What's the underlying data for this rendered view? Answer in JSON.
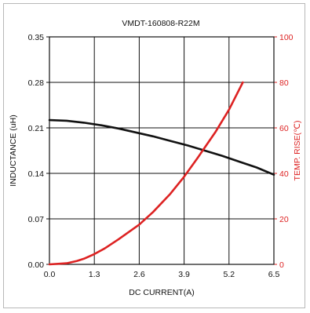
{
  "chart_data": {
    "type": "line",
    "title": "VMDT-160808-R22M",
    "xlabel": "DC CURRENT(A)",
    "ylabel_left": "INDUCTANCE (uH)",
    "ylabel_right": "TEMP. RISE(℃)",
    "xlim": [
      0,
      6.5
    ],
    "ylim_left": [
      0,
      0.35
    ],
    "ylim_right": [
      0,
      100
    ],
    "x_ticks": [
      "0.0",
      "1.3",
      "2.6",
      "3.9",
      "5.2",
      "6.5"
    ],
    "y_left_ticks": [
      "0.00",
      "0.07",
      "0.14",
      "0.21",
      "0.28",
      "0.35"
    ],
    "y_right_ticks": [
      "0",
      "20",
      "40",
      "60",
      "80",
      "100"
    ],
    "grid": true,
    "series": [
      {
        "axis": "left",
        "color": "#111111",
        "x": [
          0.0,
          0.5,
          1.0,
          1.5,
          2.0,
          2.5,
          3.0,
          3.5,
          4.0,
          4.5,
          5.0,
          5.5,
          6.0,
          6.5
        ],
        "y": [
          0.222,
          0.221,
          0.218,
          0.214,
          0.209,
          0.203,
          0.197,
          0.19,
          0.183,
          0.175,
          0.167,
          0.158,
          0.149,
          0.138
        ]
      },
      {
        "axis": "right",
        "color": "#dd2222",
        "x": [
          0.0,
          0.5,
          0.8,
          1.0,
          1.3,
          1.6,
          2.0,
          2.6,
          3.0,
          3.5,
          3.9,
          4.3,
          4.8,
          5.2,
          5.6
        ],
        "y": [
          0.0,
          0.5,
          1.5,
          2.5,
          4.5,
          7.0,
          11.0,
          17.5,
          23.0,
          31.0,
          38.5,
          47.0,
          58.0,
          68.0,
          80.0
        ]
      }
    ]
  }
}
